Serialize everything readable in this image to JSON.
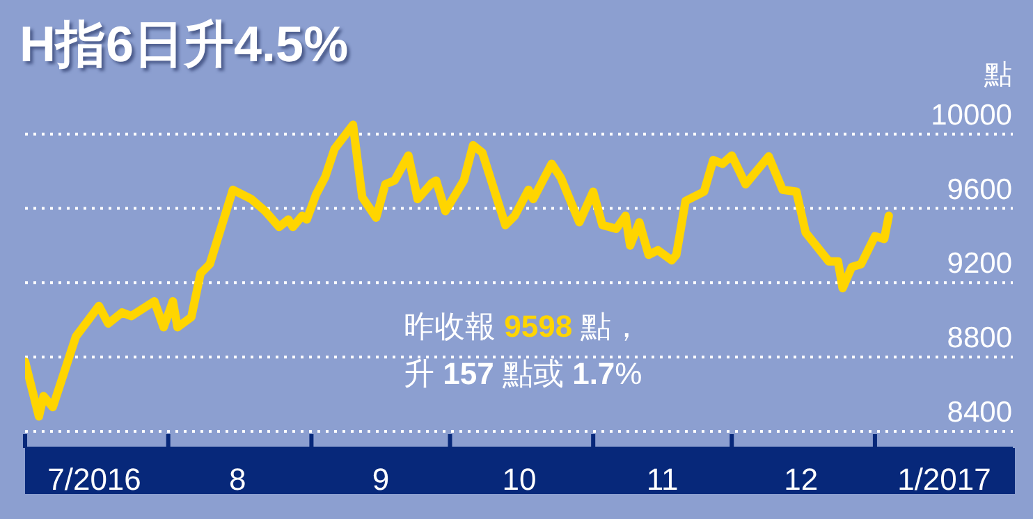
{
  "chart_data": {
    "type": "line",
    "title": "H指6日升4.5%",
    "ylabel": "點",
    "annotations": [
      "昨收報 9598 點，",
      "升 157 點或 1.7%"
    ],
    "x": [
      "2016-07-01",
      "2016-07-04",
      "2016-07-05",
      "2016-07-07",
      "2016-07-12",
      "2016-07-17",
      "2016-07-19",
      "2016-07-22",
      "2016-07-24",
      "2016-07-29",
      "2016-07-31",
      "2016-08-02",
      "2016-08-03",
      "2016-08-06",
      "2016-08-08",
      "2016-08-10",
      "2016-08-15",
      "2016-08-19",
      "2016-08-22",
      "2016-08-25",
      "2016-08-27",
      "2016-08-28",
      "2016-08-30",
      "2016-08-31",
      "2016-09-02",
      "2016-09-04",
      "2016-09-06",
      "2016-09-10",
      "2016-09-12",
      "2016-09-15",
      "2016-09-17",
      "2016-09-19",
      "2016-09-22",
      "2016-09-24",
      "2016-09-27",
      "2016-09-28",
      "2016-09-30",
      "2016-10-04",
      "2016-10-06",
      "2016-10-08",
      "2016-10-13",
      "2016-10-15",
      "2016-10-18",
      "2016-10-19",
      "2016-10-23",
      "2016-10-25",
      "2016-10-29",
      "2016-11-01",
      "2016-11-03",
      "2016-11-06",
      "2016-11-08",
      "2016-11-09",
      "2016-11-11",
      "2016-11-13",
      "2016-11-15",
      "2016-11-18",
      "2016-11-19",
      "2016-11-21",
      "2016-11-25",
      "2016-11-27",
      "2016-11-29",
      "2016-12-01",
      "2016-12-04",
      "2016-12-09",
      "2016-12-12",
      "2016-12-15",
      "2016-12-17",
      "2016-12-22",
      "2016-12-24",
      "2016-12-25",
      "2016-12-27",
      "2016-12-29",
      "2017-01-01",
      "2017-01-03",
      "2017-01-04"
    ],
    "series": [
      {
        "color": "#ffd500",
        "values": [
          8775,
          8480,
          8590,
          8530,
          8910,
          9075,
          8980,
          9040,
          9020,
          9100,
          8960,
          9100,
          8960,
          9015,
          9250,
          9300,
          9700,
          9650,
          9585,
          9500,
          9540,
          9500,
          9560,
          9540,
          9675,
          9770,
          9920,
          10050,
          9660,
          9550,
          9730,
          9750,
          9885,
          9650,
          9735,
          9750,
          9585,
          9750,
          9940,
          9900,
          9510,
          9560,
          9700,
          9650,
          9840,
          9765,
          9525,
          9690,
          9510,
          9490,
          9560,
          9400,
          9525,
          9350,
          9375,
          9320,
          9350,
          9640,
          9690,
          9860,
          9840,
          9885,
          9730,
          9880,
          9700,
          9690,
          9470,
          9315,
          9315,
          9170,
          9285,
          9300,
          9450,
          9435,
          9560
        ]
      }
    ],
    "xlim": [
      "2016-07-01",
      "2017-01-31"
    ],
    "xticks": [
      {
        "value": "2016-07-01",
        "label": null
      },
      {
        "value": "2016-07-16",
        "label": "7/2016"
      },
      {
        "value": "2016-08-01",
        "label": null
      },
      {
        "value": "2016-08-16",
        "label": "8"
      },
      {
        "value": "2016-09-01",
        "label": null
      },
      {
        "value": "2016-09-16",
        "label": "9"
      },
      {
        "value": "2016-10-01",
        "label": null
      },
      {
        "value": "2016-10-16",
        "label": "10"
      },
      {
        "value": "2016-11-01",
        "label": null
      },
      {
        "value": "2016-11-16",
        "label": "11"
      },
      {
        "value": "2016-12-01",
        "label": null
      },
      {
        "value": "2016-12-16",
        "label": "12"
      },
      {
        "value": "2017-01-01",
        "label": null
      },
      {
        "value": "2017-01-16",
        "label": "1/2017"
      }
    ],
    "ylim": [
      8310,
      10100
    ],
    "yticks": [
      8400,
      8800,
      9200,
      9600,
      10000
    ],
    "grid": "y"
  }
}
